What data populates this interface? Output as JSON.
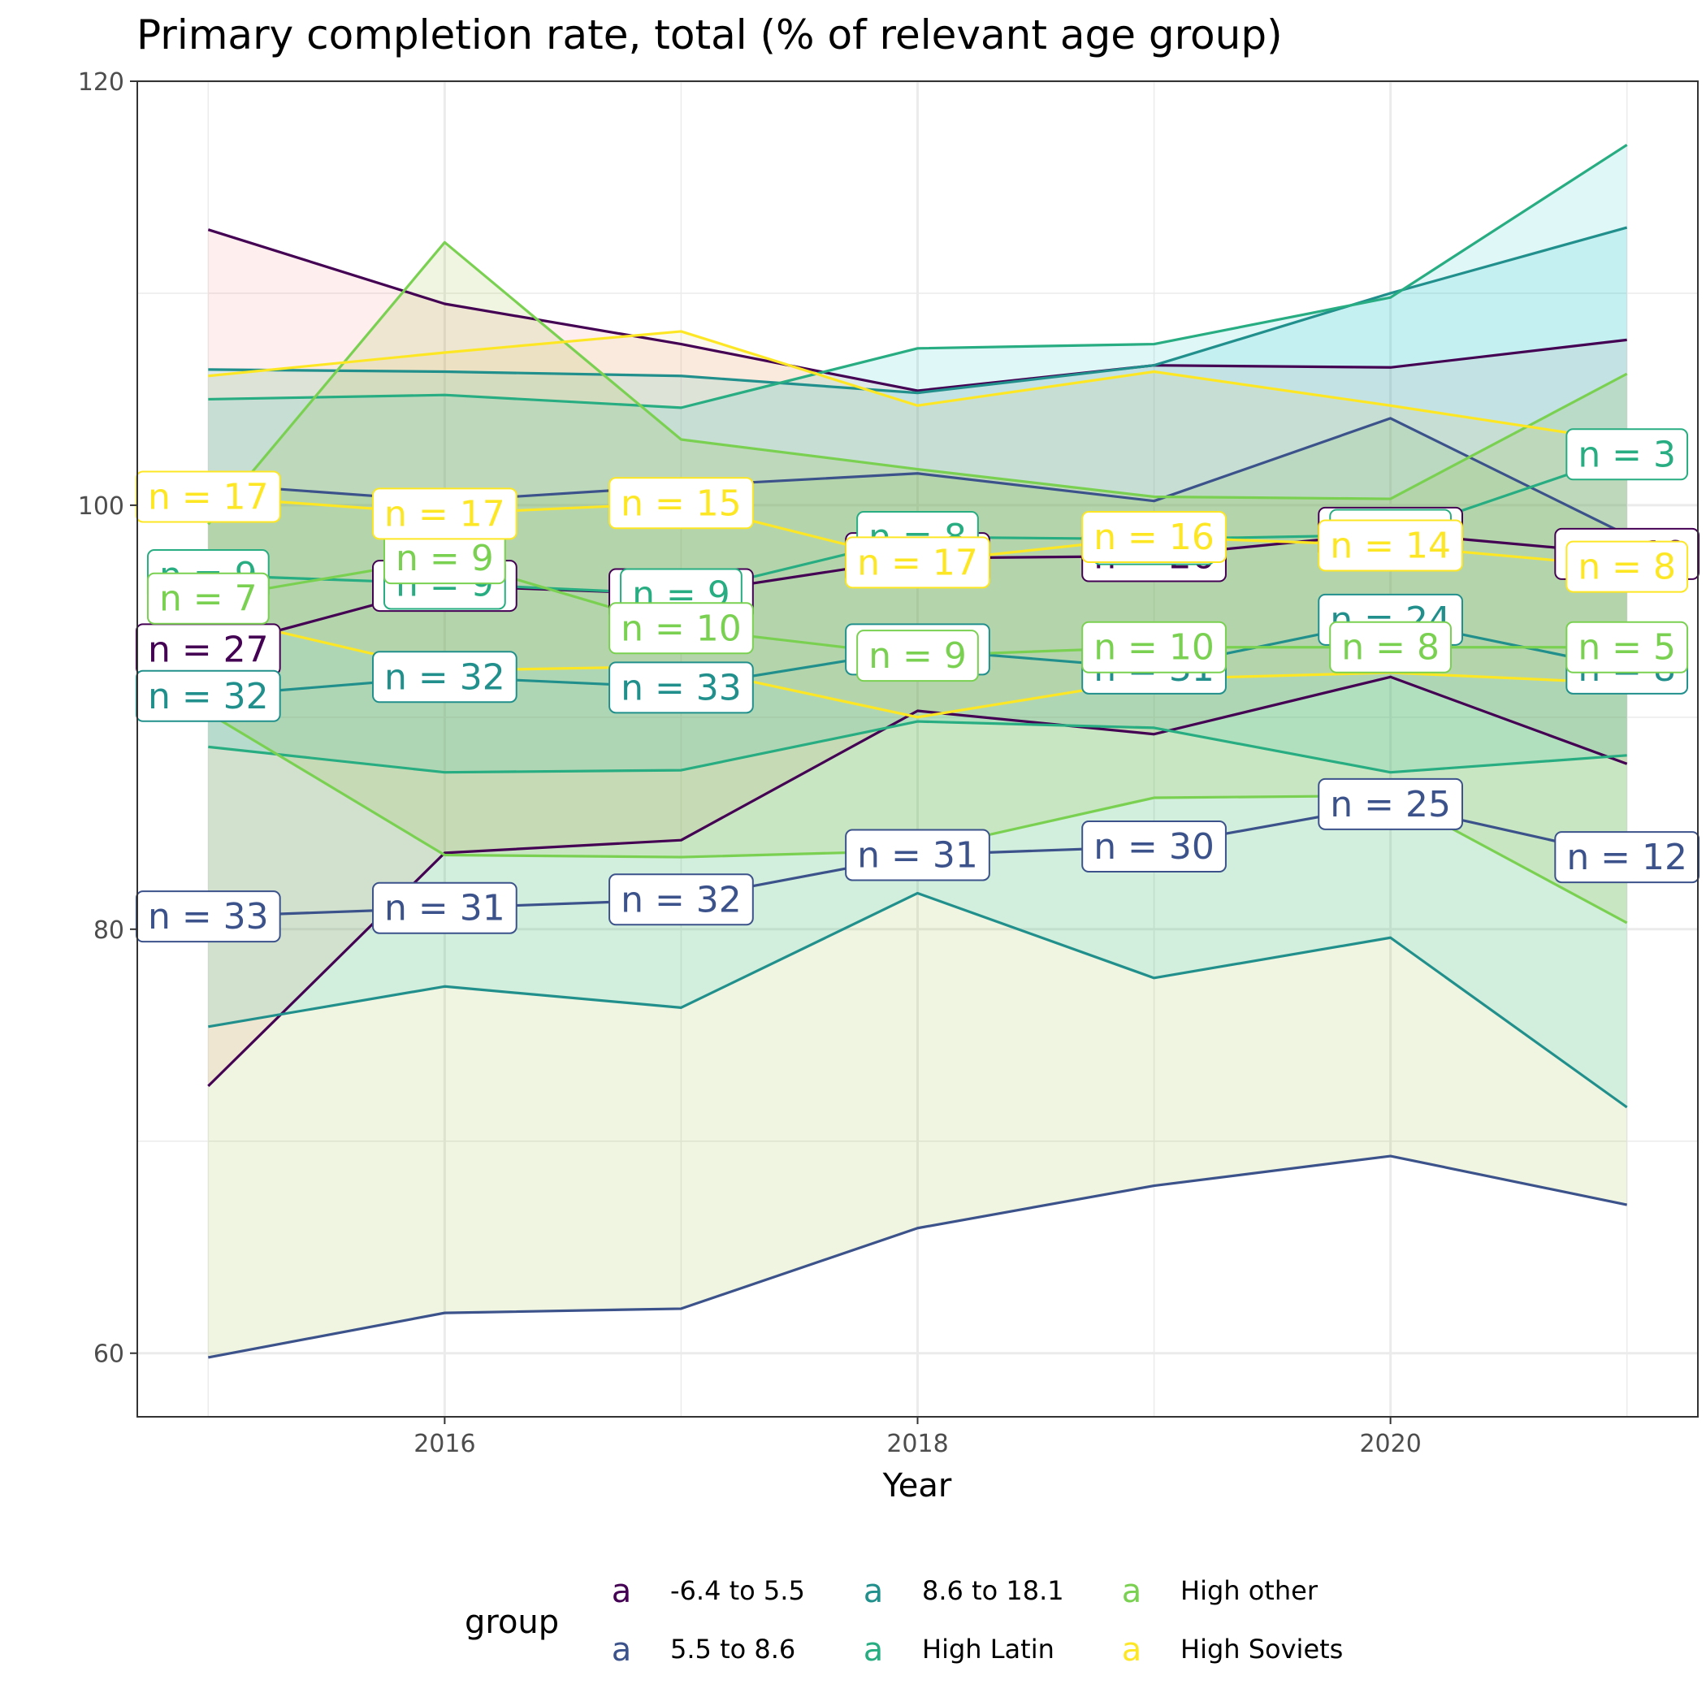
{
  "chart_data": {
    "type": "line",
    "title": "Primary completion rate, total (% of relevant age group)",
    "xlabel": "Year",
    "ylabel": "",
    "x": [
      2015,
      2016,
      2017,
      2018,
      2019,
      2020,
      2021
    ],
    "x_ticks": [
      "2016",
      "2018",
      "2020"
    ],
    "x_tick_values": [
      2016,
      2018,
      2020
    ],
    "xlim": [
      2014.7,
      2021.3
    ],
    "y_ticks": [
      "60",
      "80",
      "100",
      "120"
    ],
    "y_tick_values": [
      60,
      80,
      100,
      120
    ],
    "ylim": [
      57,
      120
    ],
    "grid": true,
    "legend_title": "group",
    "legend_position": "bottom",
    "legend_key_glyph": "a",
    "series": [
      {
        "name": "-6.4 to 5.5",
        "color": "#440154",
        "fill": "#f8766d",
        "upper": [
          113,
          109.5,
          107.6,
          105.4,
          106.6,
          106.5,
          107.8
        ],
        "mean": [
          93.2,
          96.2,
          95.8,
          97.5,
          97.6,
          98.7,
          97.7
        ],
        "lower": [
          72.6,
          83.6,
          84.2,
          90.3,
          89.2,
          91.9,
          87.8
        ],
        "n": [
          "n = 27",
          "n = 29",
          "n = 28",
          "n = 28",
          "n = 26",
          "n = 26",
          "n = 19"
        ]
      },
      {
        "name": "5.5 to 8.6",
        "color": "#3b528b",
        "fill": "#7cae00",
        "upper": [
          101,
          100.2,
          100.9,
          101.5,
          100.2,
          104.1,
          98.6
        ],
        "mean": [
          80.6,
          81,
          81.4,
          83.5,
          83.9,
          85.9,
          83.4
        ],
        "lower": [
          59.8,
          61.9,
          62.1,
          65.9,
          67.9,
          69.3,
          67
        ],
        "n": [
          "n = 33",
          "n = 31",
          "n = 32",
          "n = 31",
          "n = 30",
          "n = 25",
          "n = 12"
        ]
      },
      {
        "name": "8.6 to 18.1",
        "color": "#21908c",
        "fill": "#00bfc4",
        "upper": [
          106.4,
          106.3,
          106.1,
          105.3,
          106.6,
          110,
          113.1
        ],
        "mean": [
          91,
          91.9,
          91.4,
          93.2,
          92.3,
          94.6,
          92.3
        ],
        "lower": [
          75.4,
          77.3,
          76.3,
          81.7,
          77.7,
          79.6,
          71.6
        ],
        "n": [
          "n = 32",
          "n = 32",
          "n = 33",
          "n = 32",
          "n = 31",
          "n = 24",
          "n = 8"
        ]
      },
      {
        "name": "High Latin",
        "color": "#27ad81",
        "fill": "#00bfc4",
        "upper": [
          105,
          105.2,
          104.6,
          107.4,
          107.6,
          109.8,
          117
        ],
        "mean": [
          96.7,
          96.3,
          95.8,
          98.5,
          98.4,
          98.6,
          102.4
        ],
        "lower": [
          88.6,
          87.4,
          87.5,
          89.8,
          89.5,
          87.4,
          88.2
        ],
        "n": [
          "n = 9",
          "n = 9",
          "n = 9",
          "n = 8",
          "n = 8",
          "n = 7",
          "n = 3"
        ]
      },
      {
        "name": "High other",
        "color": "#7ad151",
        "fill": "#7cae00",
        "upper": [
          99.1,
          112.4,
          103.1,
          101.7,
          100.4,
          100.3,
          106.2
        ],
        "mean": [
          95.6,
          97.5,
          94.2,
          92.9,
          93.3,
          93.3,
          93.3
        ],
        "lower": [
          90.2,
          83.5,
          83.4,
          83.7,
          86.2,
          86.3,
          80.3
        ],
        "n": [
          "n = 7",
          "n = 9",
          "n = 10",
          "n = 9",
          "n = 10",
          "n = 8",
          "n = 5"
        ]
      },
      {
        "name": "High Soviets",
        "color": "#fde725",
        "fill": "#e1c56a",
        "upper": [
          106.1,
          107.2,
          108.2,
          104.7,
          106.3,
          104.7,
          103
        ],
        "mean": [
          100.4,
          99.6,
          100.1,
          97.3,
          98.5,
          98.1,
          97.1
        ],
        "lower": [
          94.8,
          92.2,
          92.4,
          90,
          91.8,
          92.1,
          91.6
        ],
        "n": [
          "n = 17",
          "n = 17",
          "n = 15",
          "n = 17",
          "n = 16",
          "n = 14",
          "n = 8"
        ]
      }
    ]
  }
}
